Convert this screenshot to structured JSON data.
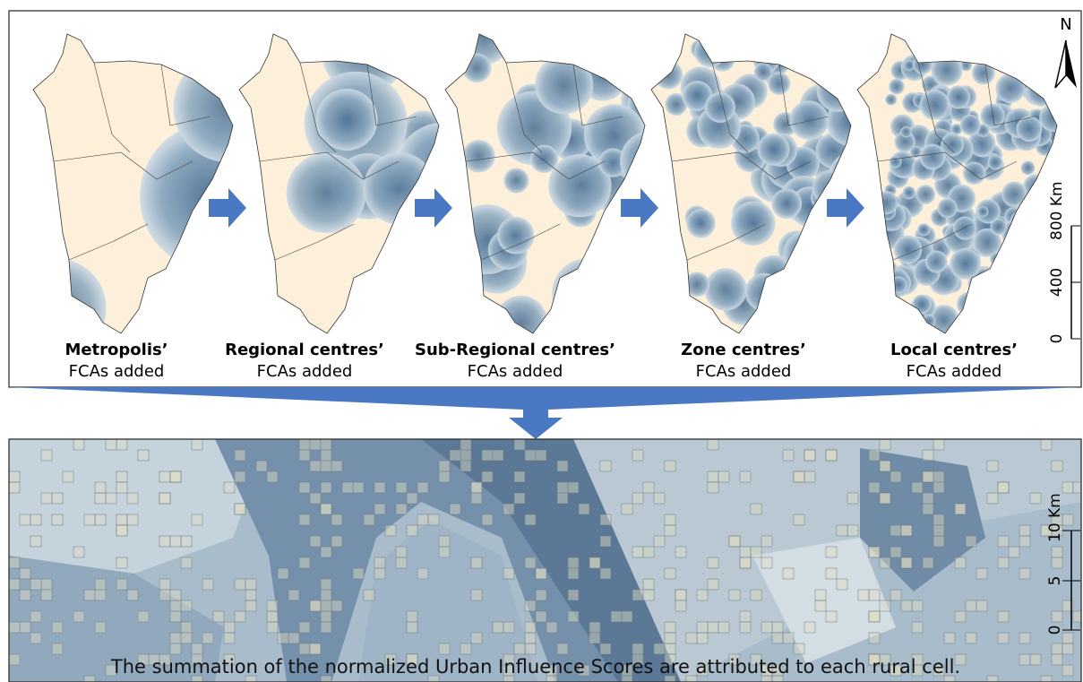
{
  "panels": [
    {
      "title": "Metropolis’",
      "subtitle": "FCAs added"
    },
    {
      "title": "Regional centres’",
      "subtitle": "FCAs added"
    },
    {
      "title": "Sub-Regional centres’",
      "subtitle": "FCAs added"
    },
    {
      "title": "Zone centres’",
      "subtitle": "FCAs added"
    },
    {
      "title": "Local centres’",
      "subtitle": "FCAs added"
    }
  ],
  "north": "N",
  "map_scale": [
    "0",
    "400",
    "800 Km"
  ],
  "detail_scale": [
    "0",
    "5",
    "10 Km"
  ],
  "caption": "The summation of the normalized Urban Influence Scores are attributed to each rural cell."
}
